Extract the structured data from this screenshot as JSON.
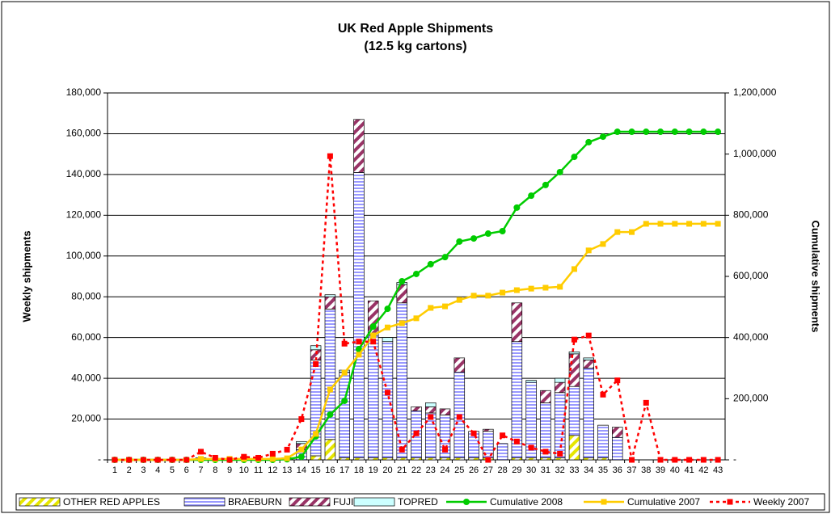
{
  "chart_data": {
    "type": "bar",
    "title": "UK Red Apple Shipments",
    "subtitle": "(12.5 kg cartons)",
    "y_label": "Weekly shipments",
    "y2_label": "Cumulative shipments",
    "grid": true,
    "legend": "bottom",
    "categories": [
      "1",
      "2",
      "3",
      "4",
      "5",
      "6",
      "7",
      "8",
      "9",
      "10",
      "11",
      "12",
      "13",
      "14",
      "15",
      "16",
      "17",
      "18",
      "19",
      "20",
      "21",
      "22",
      "23",
      "24",
      "25",
      "26",
      "27",
      "28",
      "29",
      "30",
      "31",
      "32",
      "33",
      "34",
      "35",
      "36",
      "37",
      "38",
      "39",
      "40",
      "41",
      "42",
      "43"
    ],
    "ylim": [
      0,
      180000
    ],
    "yticks": [
      {
        "value": 0,
        "label": "-"
      },
      {
        "value": 20000,
        "label": "20,000"
      },
      {
        "value": 40000,
        "label": "40,000"
      },
      {
        "value": 60000,
        "label": "60,000"
      },
      {
        "value": 80000,
        "label": "80,000"
      },
      {
        "value": 100000,
        "label": "100,000"
      },
      {
        "value": 120000,
        "label": "120,000"
      },
      {
        "value": 140000,
        "label": "140,000"
      },
      {
        "value": 160000,
        "label": "160,000"
      },
      {
        "value": 180000,
        "label": "180,000"
      }
    ],
    "y2lim": [
      0,
      1200000
    ],
    "y2ticks": [
      {
        "value": 0,
        "label": "-"
      },
      {
        "value": 200000,
        "label": "200,000"
      },
      {
        "value": 400000,
        "label": "400,000"
      },
      {
        "value": 600000,
        "label": "600,000"
      },
      {
        "value": 800000,
        "label": "800,000"
      },
      {
        "value": 1000000,
        "label": "1,000,000"
      },
      {
        "value": 1200000,
        "label": "1,200,000"
      }
    ],
    "series": [
      {
        "name": "OTHER RED APPLES",
        "type": "bar",
        "color": "#e6e600",
        "pattern": "diagonal",
        "values": [
          0,
          0,
          0,
          0,
          0,
          0,
          1000,
          0,
          0,
          0,
          0,
          0,
          0,
          0,
          2000,
          10000,
          1000,
          1000,
          1000,
          1000,
          1000,
          1000,
          1000,
          1000,
          1000,
          1000,
          1000,
          0,
          1000,
          1000,
          1000,
          1000,
          12000,
          1000,
          1000,
          0,
          0,
          0,
          0,
          0,
          0,
          0,
          0
        ]
      },
      {
        "name": "BRAEBURN",
        "type": "bar",
        "color": "#9999ff",
        "pattern": "horizontal",
        "values": [
          0,
          0,
          0,
          0,
          0,
          0,
          0,
          0,
          0,
          0,
          0,
          0,
          1000,
          5000,
          47000,
          64000,
          42000,
          140000,
          60000,
          57000,
          76000,
          23000,
          22000,
          21000,
          42000,
          13000,
          13000,
          8000,
          57000,
          37000,
          27000,
          32000,
          24000,
          44000,
          16000,
          11000,
          0,
          0,
          0,
          0,
          0,
          0,
          0
        ]
      },
      {
        "name": "FUJI",
        "type": "bar",
        "color": "#993366",
        "pattern": "diagonal",
        "values": [
          0,
          0,
          0,
          0,
          0,
          0,
          0,
          0,
          0,
          0,
          0,
          0,
          0,
          3000,
          5000,
          6000,
          0,
          26000,
          17000,
          0,
          9000,
          2000,
          3000,
          3000,
          7000,
          0,
          1000,
          0,
          19000,
          0,
          6000,
          5000,
          16000,
          4000,
          0,
          5000,
          0,
          0,
          0,
          0,
          0,
          0,
          0
        ]
      },
      {
        "name": "TOPRED",
        "type": "bar",
        "color": "#ccffff",
        "pattern": "none",
        "values": [
          0,
          0,
          0,
          0,
          0,
          0,
          0,
          0,
          0,
          0,
          0,
          0,
          0,
          1000,
          2000,
          1000,
          1000,
          0,
          0,
          2000,
          1000,
          0,
          2000,
          0,
          0,
          0,
          0,
          0,
          0,
          1000,
          0,
          2000,
          1000,
          1000,
          0,
          0,
          0,
          0,
          0,
          0,
          0,
          0,
          0
        ]
      },
      {
        "name": "Cumulative 2008",
        "type": "line",
        "axis": "y2",
        "color": "#00cc00",
        "marker": "circle",
        "dash": false,
        "values": [
          0,
          0,
          0,
          0,
          0,
          0,
          0,
          0,
          0,
          0,
          0,
          0,
          2000,
          10000,
          77000,
          148000,
          193000,
          362000,
          436000,
          494000,
          584000,
          608000,
          640000,
          663000,
          714000,
          724000,
          740000,
          748000,
          825000,
          864000,
          899000,
          941000,
          991000,
          1039000,
          1057000,
          1073000,
          1073000,
          1073000,
          1073000,
          1073000,
          1073000,
          1073000,
          1073000
        ]
      },
      {
        "name": "Cumulative 2007",
        "type": "line",
        "axis": "y2",
        "color": "#ffcc00",
        "marker": "square",
        "dash": false,
        "values": [
          0,
          0,
          0,
          0,
          0,
          0,
          3000,
          3000,
          3000,
          3000,
          3000,
          3000,
          5000,
          34000,
          85000,
          230000,
          285000,
          344000,
          407000,
          433000,
          447000,
          463000,
          497000,
          502000,
          523000,
          537000,
          537000,
          547000,
          555000,
          560000,
          563000,
          566000,
          624000,
          685000,
          706000,
          745000,
          745000,
          772000,
          772000,
          772000,
          772000,
          772000,
          772000
        ]
      },
      {
        "name": "Weekly 2007",
        "type": "line",
        "axis": "y",
        "color": "#ff0000",
        "marker": "square",
        "dash": true,
        "values": [
          0,
          0,
          0,
          0,
          0,
          0,
          4000,
          1000,
          0,
          1500,
          1000,
          3000,
          5000,
          20000,
          47000,
          149000,
          57000,
          58000,
          58000,
          33000,
          5000,
          13000,
          21000,
          5000,
          21000,
          13000,
          0,
          12000,
          9000,
          6000,
          4000,
          3000,
          59000,
          61000,
          32000,
          39000,
          0,
          28000,
          0,
          0,
          0,
          0,
          0
        ]
      }
    ]
  }
}
